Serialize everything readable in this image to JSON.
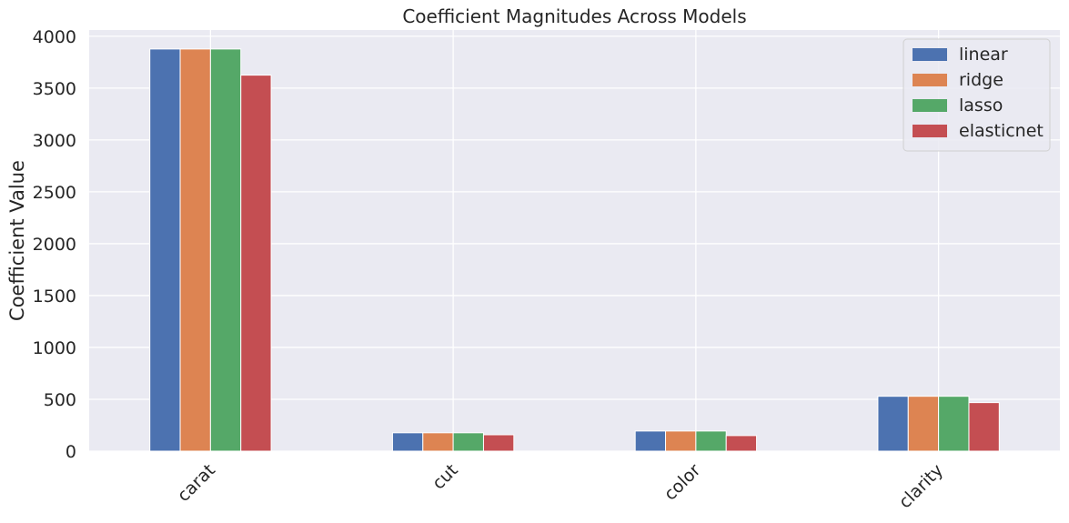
{
  "chart_data": {
    "type": "bar",
    "title": "Coefficient Magnitudes Across Models",
    "xlabel": "",
    "ylabel": "Coefficient Value",
    "categories": [
      "carat",
      "cut",
      "color",
      "clarity"
    ],
    "series": [
      {
        "name": "linear",
        "color": "#4C72B0",
        "values": [
          3877,
          177,
          194,
          529
        ]
      },
      {
        "name": "ridge",
        "color": "#DD8452",
        "values": [
          3877,
          177,
          194,
          529
        ]
      },
      {
        "name": "lasso",
        "color": "#55A868",
        "values": [
          3877,
          177,
          194,
          529
        ]
      },
      {
        "name": "elasticnet",
        "color": "#C44E52",
        "values": [
          3625,
          158,
          150,
          468
        ]
      }
    ],
    "ylim": [
      0,
      4060
    ],
    "yticks": [
      0,
      500,
      1000,
      1500,
      2000,
      2500,
      3000,
      3500,
      4000
    ],
    "grid": true,
    "legend_position": "top-right",
    "x_tick_rotation": -45,
    "background": "#EAEAF2"
  }
}
